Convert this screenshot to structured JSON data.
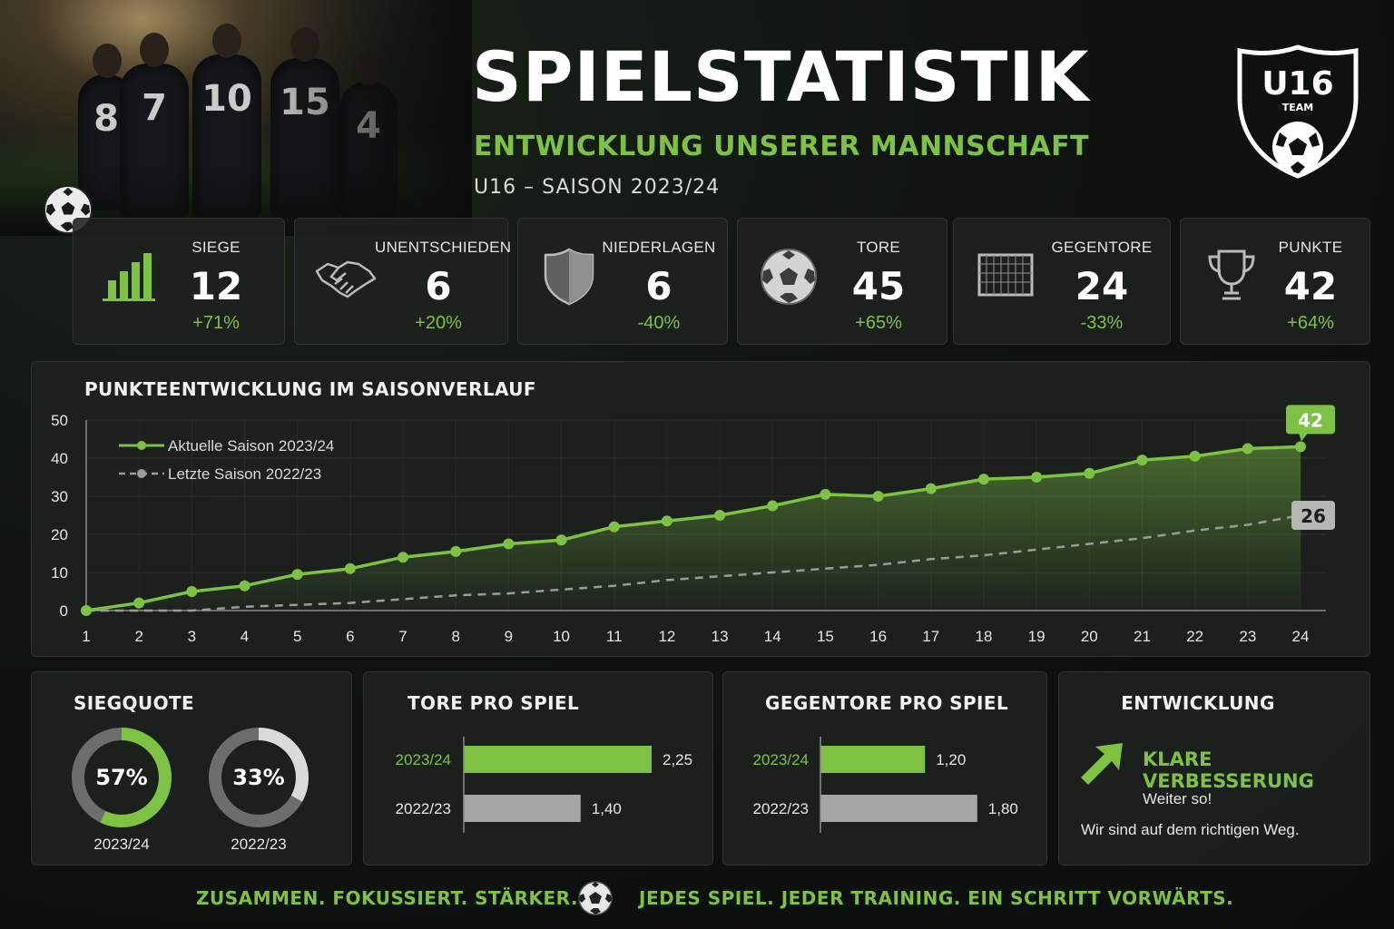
{
  "header": {
    "title": "SPIELSTATISTIK",
    "subtitle": "ENTWICKLUNG UNSERER MANNSCHAFT",
    "season": "U16 – SAISON 2023/24"
  },
  "crest": {
    "team": "U16",
    "word": "TEAM"
  },
  "hero": {
    "jersey_numbers": [
      "8",
      "7",
      "10",
      "15",
      "4"
    ]
  },
  "colors": {
    "accent": "#7dc243",
    "previous": "#9a9c9a",
    "background": "#0f1411",
    "panel": "#1e221f"
  },
  "stats": [
    {
      "icon": "bar-chart-icon",
      "label": "SIEGE",
      "value": "12",
      "change": "+71%"
    },
    {
      "icon": "handshake-icon",
      "label": "UNENTSCHIEDEN",
      "value": "6",
      "change": "+20%"
    },
    {
      "icon": "shield-icon",
      "label": "NIEDERLAGEN",
      "value": "6",
      "change": "-40%"
    },
    {
      "icon": "football-icon",
      "label": "TORE",
      "value": "45",
      "change": "+65%"
    },
    {
      "icon": "goal-icon",
      "label": "GEGENTORE",
      "value": "24",
      "change": "-33%"
    },
    {
      "icon": "trophy-icon",
      "label": "PUNKTE",
      "value": "42",
      "change": "+64%"
    }
  ],
  "line_panel": {
    "title": "PUNKTEENTWICKLUNG IM SAISONVERLAUF"
  },
  "win_rate": {
    "title": "SIEGQUOTE",
    "current": {
      "value": 57,
      "label": "57%",
      "season": "2023/24"
    },
    "previous": {
      "value": 33,
      "label": "33%",
      "season": "2022/23"
    }
  },
  "goals_panel": {
    "title": "TORE PRO SPIEL"
  },
  "against_panel": {
    "title": "GEGENTORE PRO SPIEL"
  },
  "development": {
    "title": "ENTWICKLUNG",
    "headline": "KLARE VERBESSERUNG",
    "line1": "Weiter so!",
    "line2": "Wir sind auf dem richtigen Weg."
  },
  "footer": {
    "left": "ZUSAMMEN. FOKUSSIERT. STÄRKER.",
    "right": "JEDES SPIEL. JEDER TRAINING.  EIN SCHRITT VORWÄRTS."
  },
  "chart_data": [
    {
      "type": "line",
      "title": "PUNKTEENTWICKLUNG IM SAISONVERLAUF",
      "x": [
        1,
        2,
        3,
        4,
        5,
        6,
        7,
        8,
        9,
        10,
        11,
        12,
        13,
        14,
        15,
        16,
        17,
        18,
        19,
        20,
        21,
        22,
        23,
        24
      ],
      "ylim": [
        0,
        50
      ],
      "yticks": [
        0,
        10,
        20,
        30,
        40,
        50
      ],
      "grid": true,
      "legend_position": "top-left",
      "series": [
        {
          "name": "Aktuelle Saison 2023/24",
          "style": "solid",
          "color": "#7dc243",
          "values": [
            0,
            2,
            5,
            6.5,
            9.5,
            11,
            14,
            15.5,
            17.5,
            18.5,
            22,
            23.5,
            25,
            27.5,
            30.5,
            30,
            32,
            34.5,
            35,
            36,
            39.5,
            40.5,
            42.5,
            43
          ],
          "end_label": "42"
        },
        {
          "name": "Letzte Saison 2022/23",
          "style": "dashed",
          "color": "#9a9c9a",
          "values": [
            0,
            0,
            0,
            1,
            1.5,
            2,
            3,
            4,
            4.5,
            5.5,
            6.5,
            8,
            9,
            10,
            11,
            12,
            13.5,
            14.5,
            16,
            17.5,
            19,
            21,
            22.5,
            25
          ],
          "end_label": "26"
        }
      ]
    },
    {
      "type": "pie",
      "title": "SIEGQUOTE",
      "categories": [
        "2023/24",
        "2022/23"
      ],
      "values": [
        57,
        33
      ],
      "unit": "%"
    },
    {
      "type": "bar",
      "orientation": "horizontal",
      "title": "TORE PRO SPIEL",
      "categories": [
        "2023/24",
        "2022/23"
      ],
      "values": [
        2.25,
        1.4
      ],
      "value_labels": [
        "2,25",
        "1,40"
      ],
      "xlim": [
        0,
        2.5
      ]
    },
    {
      "type": "bar",
      "orientation": "horizontal",
      "title": "GEGENTORE PRO SPIEL",
      "categories": [
        "2023/24",
        "2022/23"
      ],
      "values": [
        1.2,
        1.8
      ],
      "value_labels": [
        "1,20",
        "1,80"
      ],
      "xlim": [
        0,
        2.0
      ]
    }
  ]
}
